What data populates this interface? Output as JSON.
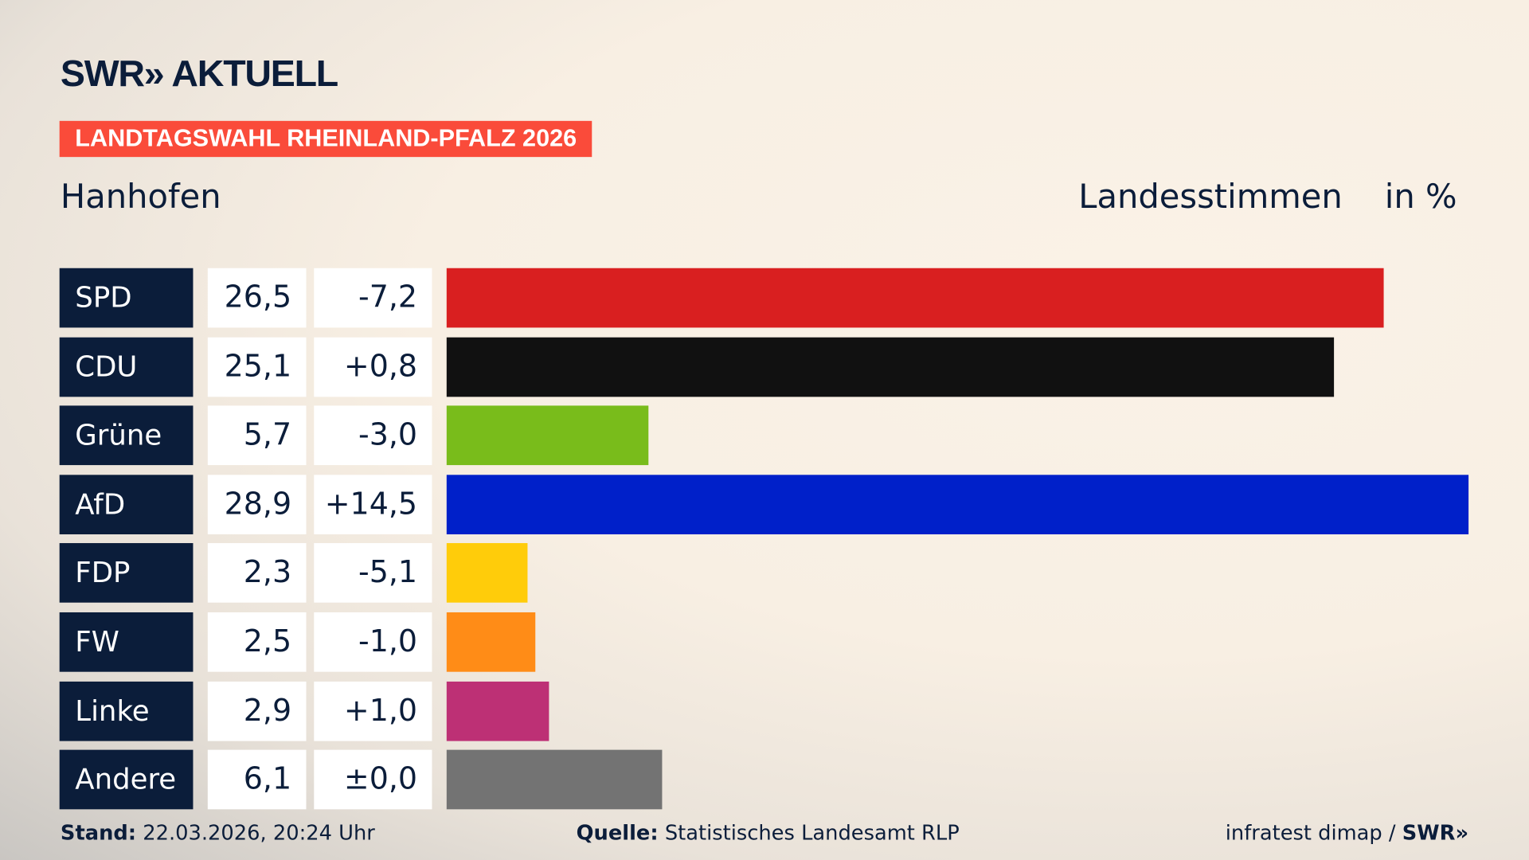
{
  "header": {
    "logo": "SWR» AKTUELL",
    "tag": "LANDTAGSWAHL RHEINLAND-PFALZ 2026",
    "place": "Hanhofen",
    "vote_type": "Landesstimmen",
    "unit": "in %"
  },
  "chart_data": {
    "type": "bar",
    "orientation": "horizontal",
    "categories": [
      "SPD",
      "CDU",
      "Grüne",
      "AfD",
      "FDP",
      "FW",
      "Linke",
      "Andere"
    ],
    "values": [
      26.5,
      25.1,
      5.7,
      28.9,
      2.3,
      2.5,
      2.9,
      6.1
    ],
    "value_labels": [
      "26,5",
      "25,1",
      "5,7",
      "28,9",
      "2,3",
      "2,5",
      "2,9",
      "6,1"
    ],
    "diff_labels": [
      "-7,2",
      "+0,8",
      "-3,0",
      "+14,5",
      "-5,1",
      "-1,0",
      "+1,0",
      "±0,0"
    ],
    "colors": [
      "#d91f20",
      "#111111",
      "#79bc1b",
      "#0020c9",
      "#ffcc0a",
      "#ff8c17",
      "#bd3075",
      "#737373"
    ]
  },
  "footer": {
    "stand_label": "Stand:",
    "stand_value": "22.03.2026, 20:24 Uhr",
    "source_label": "Quelle:",
    "source_value": "Statistisches Landesamt RLP",
    "credit": "infratest dimap / ",
    "credit_logo": "SWR»"
  }
}
